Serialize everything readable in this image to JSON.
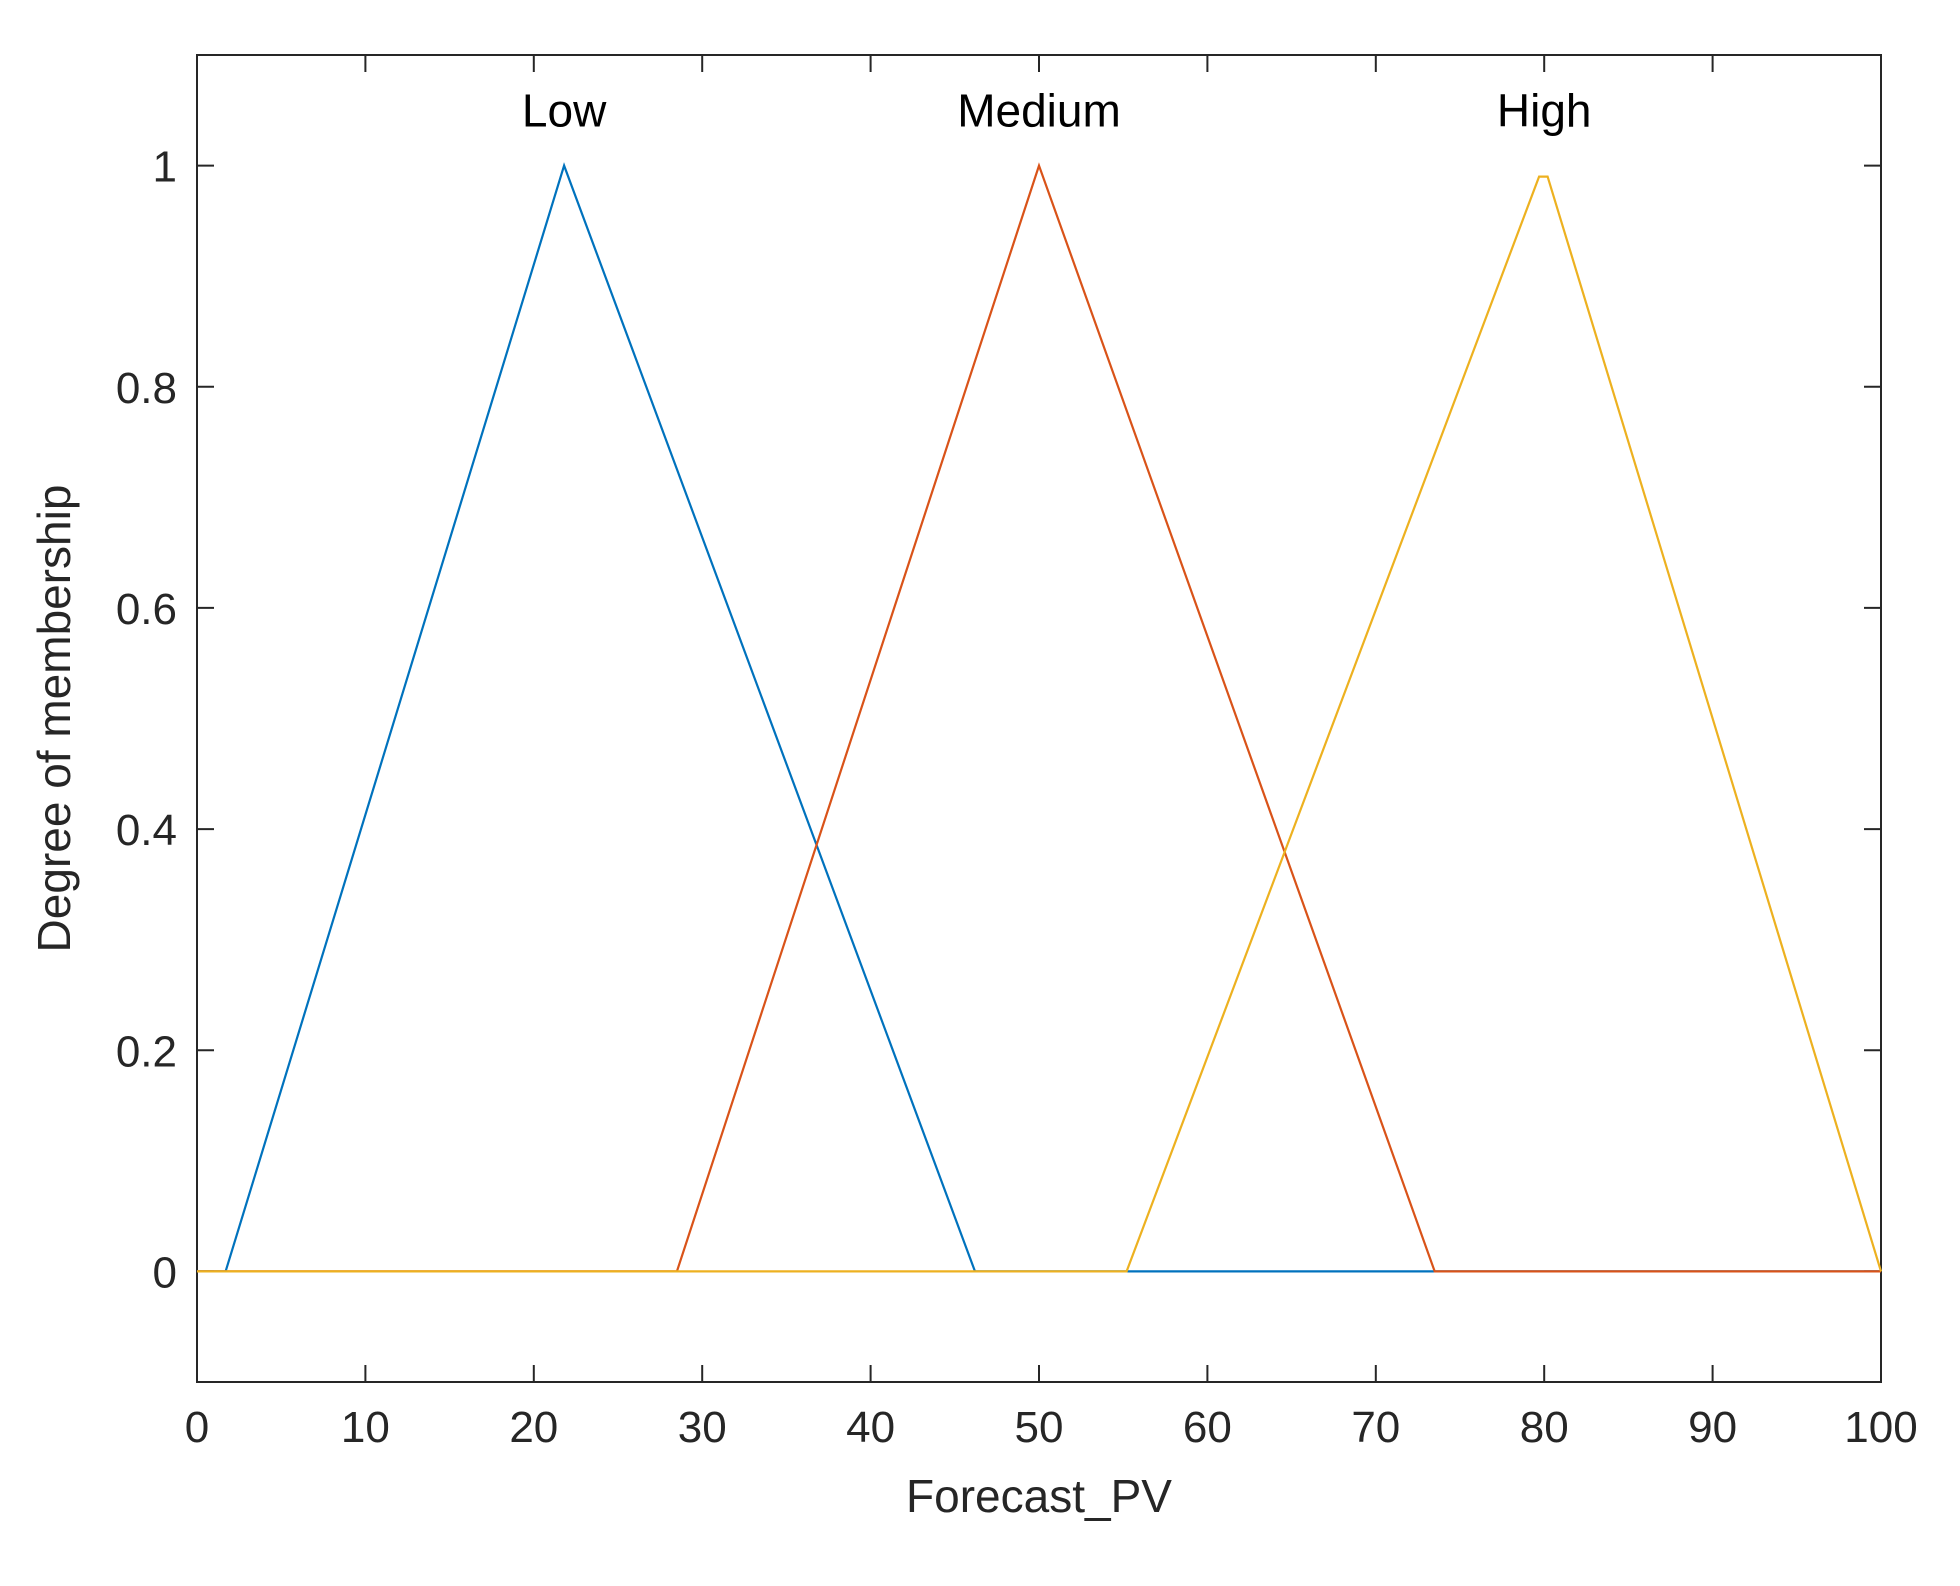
{
  "chart_data": {
    "type": "line",
    "title": "",
    "xlabel": "Forecast_PV",
    "ylabel": "Degree of membership",
    "xlim": [
      0,
      100
    ],
    "ylim": [
      -0.1,
      1.1
    ],
    "xticks": [
      0,
      10,
      20,
      30,
      40,
      50,
      60,
      70,
      80,
      90,
      100
    ],
    "yticks": [
      0,
      0.2,
      0.4,
      0.6,
      0.8,
      1
    ],
    "x_tick_labels": [
      "0",
      "10",
      "20",
      "30",
      "40",
      "50",
      "60",
      "70",
      "80",
      "90",
      "100"
    ],
    "y_tick_labels": [
      "0",
      "0.2",
      "0.4",
      "0.6",
      "0.8",
      "1"
    ],
    "grid": false,
    "series": [
      {
        "name": "Low",
        "color": "#0072BD",
        "x": [
          0,
          1.7,
          21.8,
          46.2,
          100
        ],
        "y": [
          0,
          0,
          1,
          0,
          0
        ]
      },
      {
        "name": "Medium",
        "color": "#D95319",
        "x": [
          0,
          28.5,
          50,
          73.5,
          100
        ],
        "y": [
          0,
          0,
          1,
          0,
          0
        ]
      },
      {
        "name": "High",
        "color": "#EDB120",
        "x": [
          0,
          55.2,
          79.7,
          80.2,
          100
        ],
        "y": [
          0,
          0,
          0.99,
          0.99,
          0
        ]
      }
    ],
    "annotations": [
      {
        "text": "Low",
        "x": 21.8,
        "y": 1.05
      },
      {
        "text": "Medium",
        "x": 50,
        "y": 1.05
      },
      {
        "text": "High",
        "x": 80,
        "y": 1.05
      }
    ]
  }
}
